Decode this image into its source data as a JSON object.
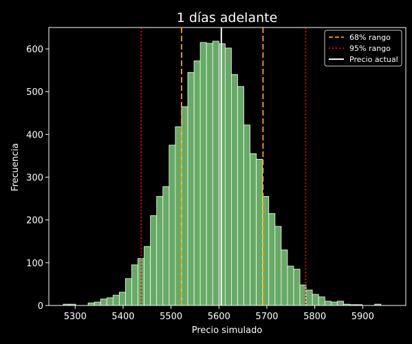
{
  "chart_data": {
    "type": "bar",
    "title": "1 días adelante",
    "xlabel": "Precio simulado",
    "ylabel": "Frecuencia",
    "xlim": [
      5245,
      5990
    ],
    "ylim": [
      0,
      650
    ],
    "xticks": [
      5300,
      5400,
      5500,
      5600,
      5700,
      5800,
      5900
    ],
    "yticks": [
      0,
      100,
      200,
      300,
      400,
      500,
      600
    ],
    "bin_start": 5275,
    "bin_width": 13,
    "values": [
      3,
      3,
      0,
      0,
      6,
      8,
      15,
      18,
      24,
      31,
      63,
      95,
      110,
      138,
      210,
      255,
      278,
      375,
      418,
      465,
      545,
      572,
      615,
      613,
      618,
      612,
      602,
      540,
      512,
      422,
      355,
      342,
      255,
      215,
      185,
      130,
      92,
      85,
      48,
      36,
      26,
      20,
      10,
      8,
      10,
      3,
      2,
      2,
      0,
      0,
      3
    ],
    "bar_color": "#66aa66",
    "grid": false,
    "vlines": [
      {
        "name": "68% rango",
        "x": 5522,
        "color": "#ffa500",
        "style": "dashed"
      },
      {
        "name": "68% rango",
        "x": 5692,
        "color": "#ffa500",
        "style": "dashed"
      },
      {
        "name": "95% rango",
        "x": 5438,
        "color": "#ff0000",
        "style": "dotted"
      },
      {
        "name": "95% rango",
        "x": 5781,
        "color": "#ff0000",
        "style": "dotted"
      },
      {
        "name": "Precio actual",
        "x": 5605,
        "color": "#ffffff",
        "style": "solid"
      }
    ],
    "legend": {
      "placement": "top-right",
      "entries": [
        {
          "label": "68% rango",
          "color": "#ffa500",
          "style": "dashed"
        },
        {
          "label": "95% rango",
          "color": "#ff0000",
          "style": "dotted"
        },
        {
          "label": "Precio actual",
          "color": "#ffffff",
          "style": "solid"
        }
      ]
    }
  }
}
